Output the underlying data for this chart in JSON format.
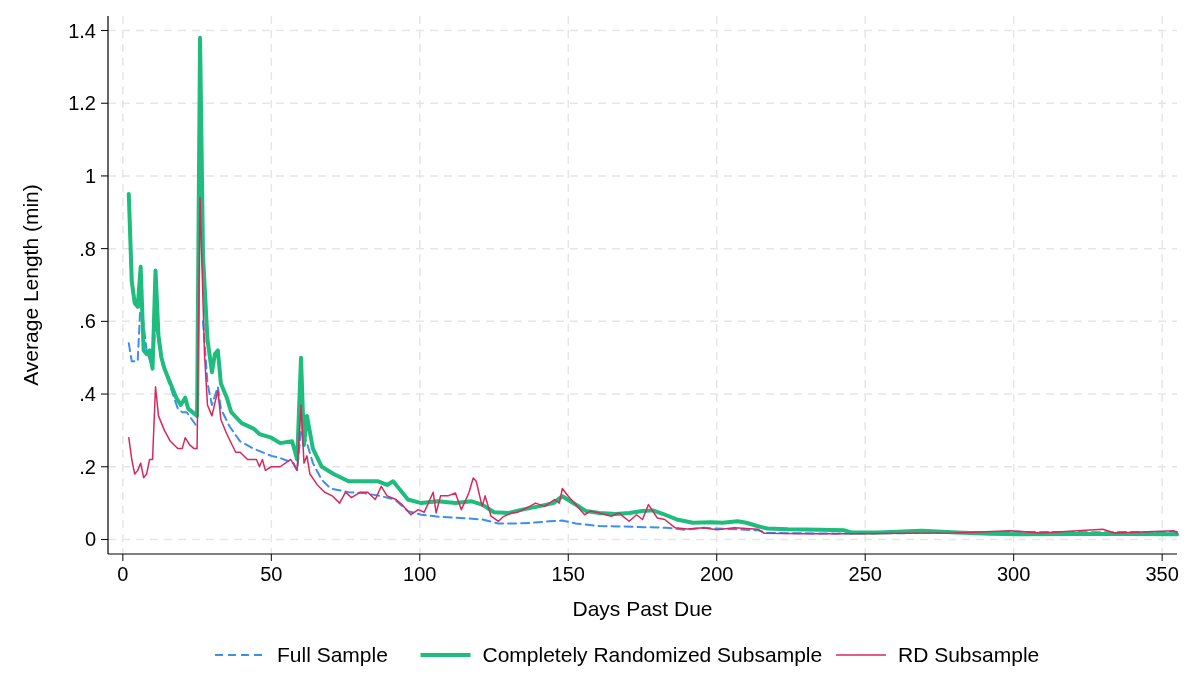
{
  "chart_data": {
    "type": "line",
    "xlabel": "Days Past Due",
    "ylabel": "Average Length (min)",
    "xlim": [
      -5,
      355
    ],
    "xticks": [
      0,
      50,
      100,
      150,
      200,
      250,
      300,
      350
    ],
    "ylim": [
      -0.04,
      1.44
    ],
    "yticks": [
      0,
      {
        "value": 0.2,
        "label": ".2"
      },
      {
        "value": 0.4,
        "label": ".4"
      },
      {
        "value": 0.6,
        "label": ".6"
      },
      {
        "value": 0.8,
        "label": ".8"
      },
      1,
      1.2,
      1.4
    ],
    "grid": true,
    "legend": "bottom",
    "series": [
      {
        "name": "Full Sample",
        "color": "#3a8ff0",
        "line_style": "dashed",
        "x": [
          2,
          3,
          5,
          6,
          8,
          10,
          11,
          13,
          16,
          18.5,
          20,
          21.5,
          25,
          26,
          27,
          28.5,
          30,
          32,
          33,
          36,
          39.5,
          44,
          50,
          53,
          57.5,
          58.7,
          60,
          62,
          64,
          67,
          70,
          76,
          81,
          87,
          91.5,
          96,
          100.5,
          107,
          114,
          121,
          126.5,
          132,
          138,
          143.5,
          148,
          152.5,
          160.5,
          171.5,
          183,
          189,
          195.5,
          214,
          217,
          240,
          275,
          298,
          330,
          355
        ],
        "values": [
          0.54,
          0.49,
          0.49,
          0.66,
          0.52,
          0.47,
          0.6,
          0.49,
          0.42,
          0.36,
          0.35,
          0.35,
          0.31,
          null,
          0.6,
          0.43,
          0.37,
          0.42,
          0.36,
          0.31,
          0.27,
          0.25,
          0.23,
          0.224,
          0.21,
          0.19,
          0.3,
          0.265,
          0.21,
          0.164,
          0.14,
          0.13,
          0.128,
          0.119,
          0.11,
          0.078,
          0.068,
          0.062,
          0.059,
          0.055,
          0.044,
          0.044,
          0.046,
          0.05,
          0.052,
          0.044,
          0.037,
          0.035,
          0.032,
          0.027,
          0.032,
          0.025,
          0.018,
          0.016,
          0.018,
          0.021,
          0.02,
          0.021
        ]
      },
      {
        "name": "Completely Randomized Subsample",
        "color": "#1ebd7d",
        "line_style": "solid",
        "x": [
          2,
          3,
          4,
          5,
          6,
          7,
          8,
          9,
          10,
          11,
          12,
          13,
          14,
          16,
          18,
          19.5,
          21,
          22,
          25,
          26,
          27,
          28.5,
          30,
          31,
          32,
          33,
          35,
          36.5,
          40,
          44,
          46,
          50,
          53,
          57,
          58.7,
          60,
          61,
          62,
          64,
          67,
          71,
          76,
          81,
          86,
          89,
          91,
          93,
          96,
          100.5,
          106,
          112,
          117.5,
          121,
          125,
          130,
          134.5,
          140,
          145,
          148,
          152.5,
          156,
          160.5,
          166,
          170.5,
          175,
          178.5,
          182,
          186.5,
          192,
          198,
          202,
          207,
          210,
          213.6,
          217,
          224,
          235,
          243,
          245.5,
          254.5,
          269,
          281,
          292,
          303,
          320,
          337.5,
          355
        ],
        "values": [
          0.95,
          0.71,
          0.65,
          0.64,
          0.75,
          0.52,
          0.51,
          0.52,
          0.47,
          0.74,
          0.56,
          0.5,
          0.47,
          0.43,
          0.39,
          0.37,
          0.39,
          0.36,
          0.34,
          1.38,
          0.78,
          0.55,
          0.46,
          0.51,
          0.52,
          0.43,
          0.39,
          0.35,
          0.32,
          0.305,
          0.29,
          0.28,
          0.265,
          0.27,
          0.22,
          0.5,
          0.26,
          0.34,
          0.25,
          0.2,
          0.18,
          0.16,
          0.16,
          0.16,
          0.15,
          0.16,
          0.14,
          0.11,
          0.1,
          0.105,
          0.1,
          0.105,
          0.096,
          0.075,
          0.073,
          0.082,
          0.091,
          0.1,
          0.119,
          0.096,
          0.078,
          0.073,
          0.07,
          0.073,
          0.078,
          0.08,
          0.07,
          0.055,
          0.046,
          0.047,
          0.046,
          0.05,
          0.046,
          0.037,
          0.03,
          0.028,
          0.027,
          0.025,
          0.019,
          0.019,
          0.024,
          0.019,
          0.016,
          0.014,
          0.015,
          0.015,
          0.014
        ]
      },
      {
        "name": "RD Subsample",
        "color": "#d8295f",
        "line_style": "solid",
        "x": [
          2,
          3,
          4,
          5,
          6,
          7,
          8,
          9,
          10,
          11,
          12,
          14,
          16,
          18.5,
          20,
          21,
          22.5,
          24,
          25,
          26,
          27.5,
          28.5,
          30,
          32,
          33,
          35,
          38,
          39.5,
          42,
          45,
          46,
          47,
          48,
          50,
          53,
          56.5,
          58.7,
          60,
          61,
          62,
          63,
          65.5,
          68,
          70.5,
          73,
          75,
          77,
          80,
          82.5,
          85,
          87,
          89,
          92,
          94,
          97,
          99.5,
          101.5,
          104.5,
          105.5,
          107,
          109.5,
          112,
          114,
          116.5,
          118,
          119,
          121,
          122,
          124,
          126.5,
          128,
          131,
          133,
          137,
          139,
          142,
          145.5,
          147,
          148,
          150,
          152.5,
          155.5,
          157.5,
          160.5,
          164.5,
          167,
          170.5,
          173,
          175,
          177,
          180,
          182.5,
          186,
          190,
          195.5,
          200,
          206,
          214,
          216,
          229.5,
          246.6,
          263,
          280,
          299,
          309,
          330,
          334,
          354,
          355
        ],
        "values": [
          0.28,
          0.22,
          0.18,
          0.19,
          0.21,
          0.17,
          0.18,
          0.22,
          0.22,
          0.42,
          0.34,
          0.3,
          0.27,
          0.25,
          0.25,
          0.28,
          0.26,
          0.25,
          0.25,
          0.94,
          0.51,
          0.37,
          0.34,
          0.41,
          0.33,
          0.29,
          0.24,
          0.24,
          0.22,
          0.22,
          0.2,
          0.22,
          0.19,
          0.2,
          0.2,
          0.22,
          0.19,
          0.37,
          0.21,
          0.23,
          0.18,
          0.15,
          0.13,
          0.12,
          0.1,
          0.13,
          0.115,
          0.13,
          0.13,
          0.11,
          0.146,
          0.12,
          0.11,
          0.096,
          0.068,
          0.082,
          0.075,
          0.13,
          0.073,
          0.12,
          0.12,
          0.128,
          0.082,
          0.128,
          0.169,
          0.16,
          0.091,
          0.12,
          0.064,
          0.05,
          0.062,
          0.073,
          0.075,
          0.091,
          0.1,
          0.091,
          0.11,
          0.1,
          0.14,
          0.119,
          0.096,
          0.068,
          0.078,
          0.073,
          0.064,
          0.073,
          0.05,
          0.068,
          0.055,
          0.096,
          0.059,
          0.055,
          0.032,
          0.029,
          0.032,
          0.027,
          0.032,
          0.028,
          0.017,
          0.016,
          0.016,
          0.017,
          0.018,
          0.024,
          0.018,
          0.028,
          0.018,
          0.024,
          0.018
        ]
      }
    ]
  }
}
